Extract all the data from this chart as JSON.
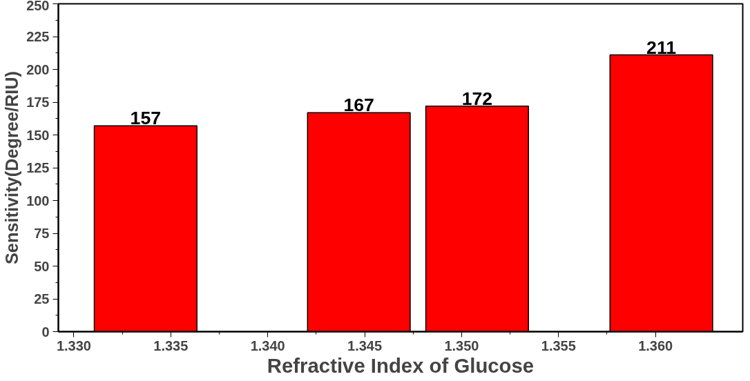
{
  "chart_data": {
    "type": "bar",
    "xlabel": "Refractive Index of Glucose",
    "ylabel": "Sensitivity(Degree/RIU)",
    "x": [
      1.3337,
      1.3447,
      1.3508,
      1.3603
    ],
    "values": [
      157,
      167,
      172,
      211
    ],
    "color": "#ff0000",
    "xlim": [
      1.3292,
      1.3645
    ],
    "xticks": [
      {
        "value": 1.33,
        "label": "1.330"
      },
      1.335,
      {
        "value": 1.34,
        "label": "1.340"
      },
      1.345,
      {
        "value": 1.35,
        "label": "1.350"
      },
      1.355,
      {
        "value": 1.36,
        "label": "1.360"
      }
    ],
    "ylim": [
      0,
      250
    ],
    "yticks": [
      0,
      25,
      50,
      75,
      100,
      125,
      150,
      175,
      200,
      225,
      250
    ],
    "grid": false,
    "data_labels": true
  }
}
